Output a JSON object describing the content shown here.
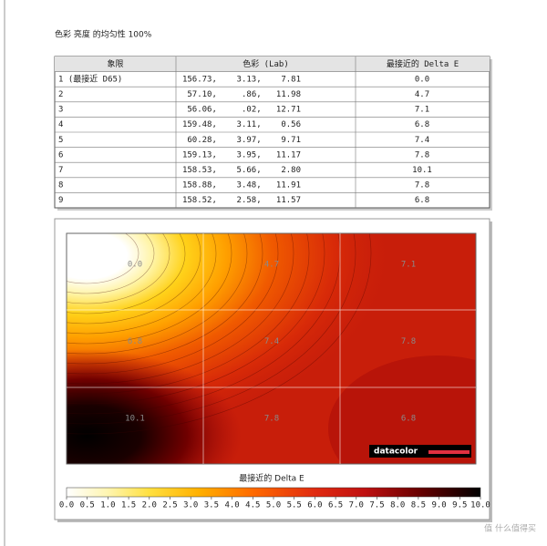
{
  "title": "色彩 亮度 的均匀性 100%",
  "table": {
    "headers": [
      "象限",
      "色彩 (Lab)",
      "最接近的 Delta E"
    ],
    "rows": [
      [
        "1 (最接近 D65)",
        "156.73,    3.13,    7.81",
        "0.0"
      ],
      [
        "2",
        "57.10,     .86,   11.98",
        "4.7"
      ],
      [
        "3",
        "56.06,     .02,   12.71",
        "7.1"
      ],
      [
        "4",
        "159.48,    3.11,    0.56",
        "6.8"
      ],
      [
        "5",
        "60.28,    3.97,    9.71",
        "7.4"
      ],
      [
        "6",
        "159.13,    3.95,   11.17",
        "7.8"
      ],
      [
        "7",
        "158.53,    5.66,    2.80",
        "10.1"
      ],
      [
        "8",
        "158.88,    3.48,   11.91",
        "7.8"
      ],
      [
        "9",
        "158.52,    2.58,   11.57",
        "6.8"
      ]
    ]
  },
  "heatmap": {
    "cells": [
      [
        "0.0",
        "4.7",
        "7.1"
      ],
      [
        "6.8",
        "7.4",
        "7.8"
      ],
      [
        "10.1",
        "7.8",
        "6.8"
      ]
    ],
    "logo": "datacolor"
  },
  "colorbar": {
    "title": "最接近的 Delta E",
    "ticks": [
      "0.0",
      "0.5",
      "1.0",
      "1.5",
      "2.0",
      "2.5",
      "3.0",
      "3.5",
      "4.0",
      "4.5",
      "5.0",
      "5.5",
      "6.0",
      "6.5",
      "7.0",
      "7.5",
      "8.0",
      "8.5",
      "9.0",
      "9.5",
      "10.0"
    ]
  },
  "watermark": "值 什么值得买"
}
